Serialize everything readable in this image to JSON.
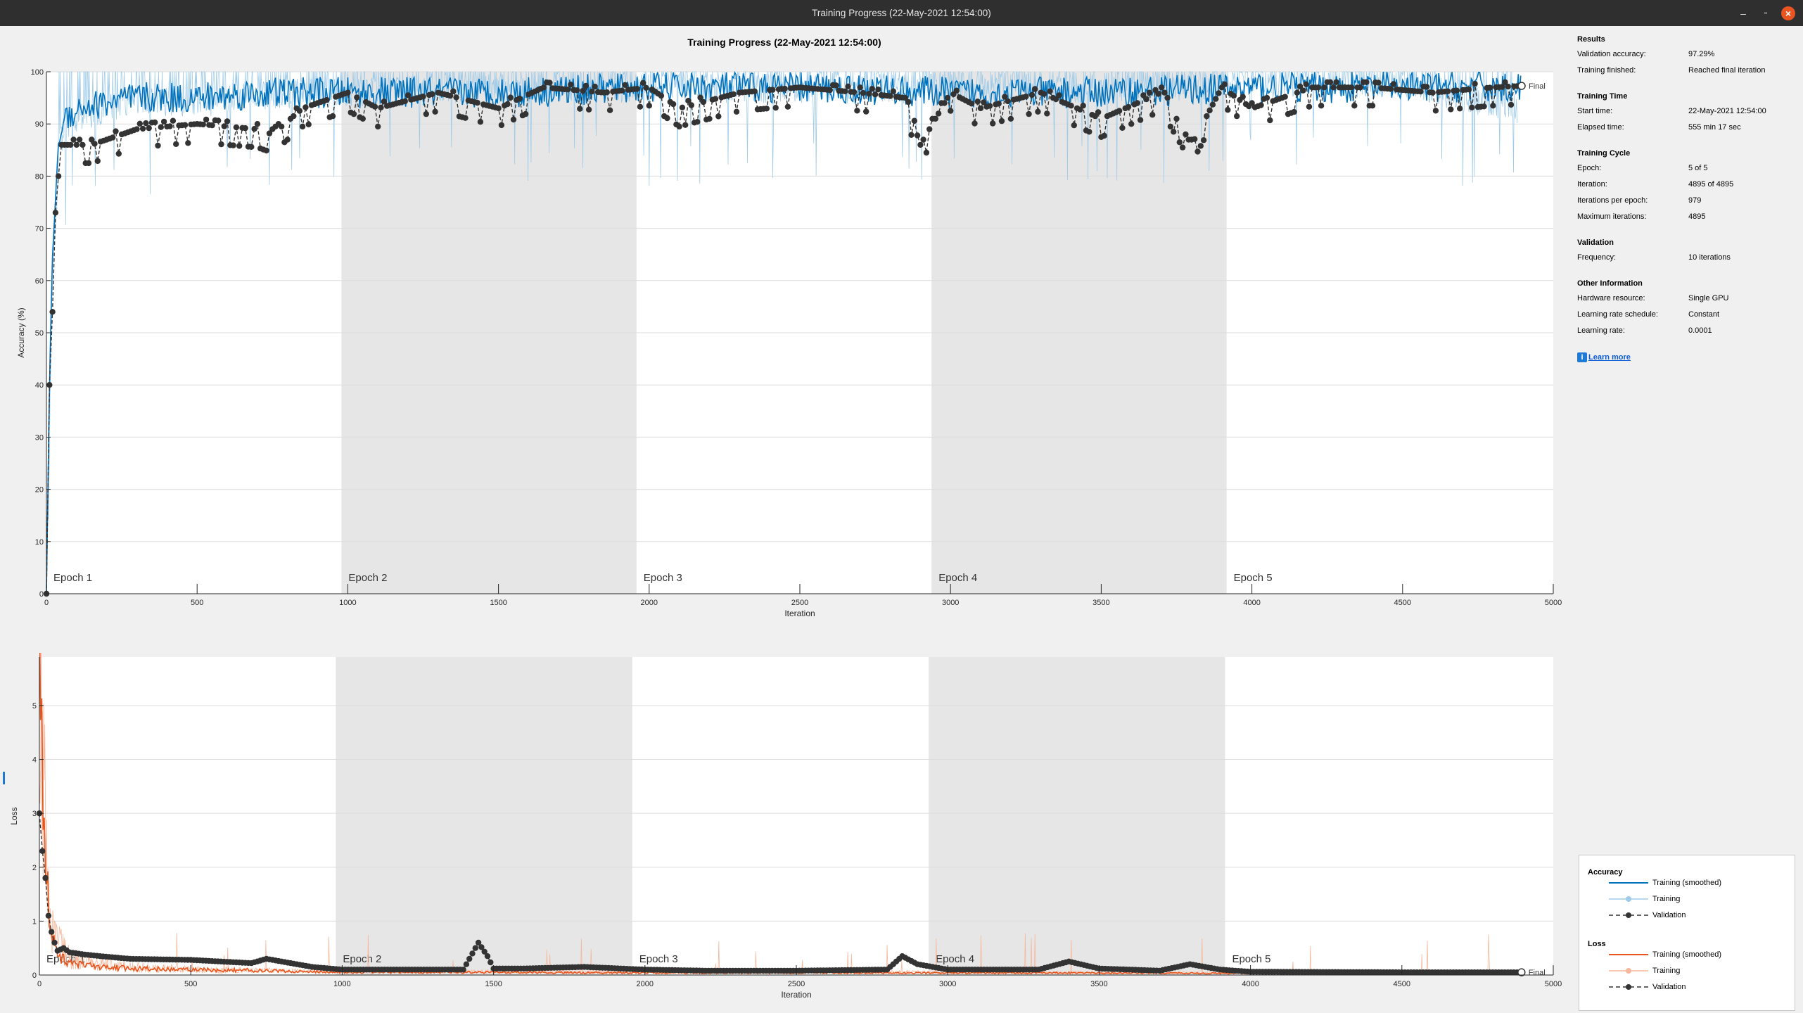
{
  "window": {
    "title": "Training Progress (22-May-2021 12:54:00)"
  },
  "plot_title": "Training Progress (22-May-2021 12:54:00)",
  "info": {
    "sections": [
      {
        "title": "Results",
        "rows": [
          {
            "label": "Validation accuracy:",
            "value": "97.29%"
          },
          {
            "label": "Training finished:",
            "value": "Reached final iteration"
          }
        ]
      },
      {
        "title": "Training Time",
        "rows": [
          {
            "label": "Start time:",
            "value": "22-May-2021 12:54:00"
          },
          {
            "label": "Elapsed time:",
            "value": "555 min 17 sec"
          }
        ]
      },
      {
        "title": "Training Cycle",
        "rows": [
          {
            "label": "Epoch:",
            "value": "5 of 5"
          },
          {
            "label": "Iteration:",
            "value": "4895 of 4895"
          },
          {
            "label": "Iterations per epoch:",
            "value": "979"
          },
          {
            "label": "Maximum iterations:",
            "value": "4895"
          }
        ]
      },
      {
        "title": "Validation",
        "rows": [
          {
            "label": "Frequency:",
            "value": "10 iterations"
          }
        ]
      },
      {
        "title": "Other Information",
        "rows": [
          {
            "label": "Hardware resource:",
            "value": "Single GPU"
          },
          {
            "label": "Learning rate schedule:",
            "value": "Constant"
          },
          {
            "label": "Learning rate:",
            "value": "0.0001"
          }
        ]
      }
    ],
    "learn_more": "Learn more"
  },
  "legend": {
    "accuracy_title": "Accuracy",
    "loss_title": "Loss",
    "entries": [
      "Training (smoothed)",
      "Training",
      "Validation"
    ]
  },
  "colors": {
    "acc_smoothed": "#0072bd",
    "acc_training": "#9fcbe8",
    "loss_smoothed": "#e8541c",
    "loss_training": "#f6b89c",
    "validation": "#333333",
    "epoch_shade": "#e6e6e6"
  },
  "chart_data": [
    {
      "type": "line",
      "xlabel": "Iteration",
      "ylabel": "Accuracy (%)",
      "xlim": [
        0,
        5000
      ],
      "ylim": [
        0,
        100
      ],
      "xticks": [
        0,
        500,
        1000,
        1500,
        2000,
        2500,
        3000,
        3500,
        4000,
        4500,
        5000
      ],
      "yticks": [
        0,
        10,
        20,
        30,
        40,
        50,
        60,
        70,
        80,
        90,
        100
      ],
      "epochs": [
        {
          "label": "Epoch 1",
          "start": 0,
          "end": 979
        },
        {
          "label": "Epoch 2",
          "start": 979,
          "end": 1958
        },
        {
          "label": "Epoch 3",
          "start": 1958,
          "end": 2937
        },
        {
          "label": "Epoch 4",
          "start": 2937,
          "end": 3916
        },
        {
          "label": "Epoch 5",
          "start": 3916,
          "end": 4895
        }
      ],
      "final_label": "Final",
      "series": [
        {
          "name": "Training (smoothed)",
          "x": [
            0,
            10,
            20,
            40,
            60,
            100,
            200,
            300,
            500,
            750,
            1000,
            1500,
            2000,
            2500,
            3000,
            3500,
            4000,
            4500,
            4895
          ],
          "y": [
            0,
            40,
            65,
            86,
            91,
            93,
            94,
            95,
            95,
            96,
            96,
            96,
            97,
            97,
            96,
            96,
            97,
            97,
            97
          ]
        },
        {
          "name": "Training",
          "x": [
            0,
            10,
            20,
            40,
            60,
            100,
            200,
            300,
            500,
            750,
            1000,
            1500,
            2000,
            2500,
            3000,
            3500,
            4000,
            4500,
            4880
          ],
          "y": [
            0,
            30,
            60,
            84,
            88,
            90,
            92,
            94,
            93,
            95,
            95,
            96,
            96,
            96,
            96,
            96,
            97,
            97,
            92
          ]
        },
        {
          "name": "Validation",
          "x": [
            0,
            10,
            20,
            30,
            40,
            50,
            80,
            150,
            300,
            500,
            700,
            750,
            850,
            1000,
            1100,
            1300,
            1500,
            1650,
            1850,
            2000,
            2100,
            2300,
            2500,
            2700,
            2850,
            2900,
            3000,
            3100,
            3300,
            3500,
            3700,
            3800,
            3900,
            4000,
            4200,
            4400,
            4600,
            4800,
            4895
          ],
          "y": [
            0,
            40,
            54,
            73,
            80,
            86,
            86,
            86,
            89,
            90,
            89,
            88,
            93,
            96,
            93,
            96,
            93,
            97,
            96,
            97,
            93,
            96,
            97,
            96,
            95,
            86,
            96,
            93,
            96,
            91,
            96,
            86,
            97,
            93,
            97,
            97,
            96,
            97,
            97.29
          ]
        }
      ]
    },
    {
      "type": "line",
      "xlabel": "Iteration",
      "ylabel": "Loss",
      "xlim": [
        0,
        5000
      ],
      "ylim": [
        0,
        5.9
      ],
      "xticks": [
        0,
        500,
        1000,
        1500,
        2000,
        2500,
        3000,
        3500,
        4000,
        4500,
        5000
      ],
      "yticks": [
        0,
        1,
        2,
        3,
        4,
        5
      ],
      "epochs": [
        {
          "label": "Epoch 1",
          "start": 0,
          "end": 979
        },
        {
          "label": "Epoch 2",
          "start": 979,
          "end": 1958
        },
        {
          "label": "Epoch 3",
          "start": 1958,
          "end": 2937
        },
        {
          "label": "Epoch 4",
          "start": 2937,
          "end": 3916
        },
        {
          "label": "Epoch 5",
          "start": 3916,
          "end": 4895
        }
      ],
      "final_label": "Final",
      "series": [
        {
          "name": "Training (smoothed)",
          "x": [
            0,
            5,
            20,
            40,
            60,
            100,
            200,
            300,
            500,
            750,
            1000,
            1500,
            2000,
            2500,
            3000,
            3500,
            4000,
            4500,
            4895
          ],
          "y": [
            5.8,
            4.2,
            2.2,
            0.8,
            0.4,
            0.2,
            0.15,
            0.12,
            0.1,
            0.08,
            0.05,
            0.05,
            0.04,
            0.04,
            0.04,
            0.04,
            0.03,
            0.03,
            0.03
          ]
        },
        {
          "name": "Training",
          "x": [
            0,
            5,
            20,
            40,
            60,
            100,
            200,
            300,
            500,
            750,
            1000,
            1500,
            2000,
            2500,
            3000,
            3500,
            4000,
            4500,
            4895
          ],
          "y": [
            5.8,
            4.5,
            2.5,
            1.0,
            0.6,
            0.3,
            0.2,
            0.15,
            0.1,
            0.08,
            0.06,
            0.06,
            0.05,
            0.05,
            0.05,
            0.04,
            0.04,
            0.03,
            0.03
          ]
        },
        {
          "name": "Validation",
          "x": [
            0,
            10,
            20,
            30,
            40,
            50,
            60,
            80,
            100,
            150,
            200,
            300,
            500,
            700,
            750,
            900,
            1000,
            1400,
            1450,
            1480,
            1500,
            1600,
            1800,
            2000,
            2200,
            2500,
            2800,
            2850,
            2900,
            3000,
            3300,
            3400,
            3500,
            3700,
            3800,
            3900,
            4000,
            4500,
            4895
          ],
          "y": [
            3.0,
            2.3,
            1.8,
            1.1,
            0.8,
            0.6,
            0.45,
            0.5,
            0.42,
            0.38,
            0.35,
            0.3,
            0.28,
            0.22,
            0.3,
            0.15,
            0.1,
            0.1,
            0.6,
            0.35,
            0.12,
            0.12,
            0.15,
            0.1,
            0.08,
            0.08,
            0.1,
            0.35,
            0.2,
            0.1,
            0.1,
            0.25,
            0.12,
            0.08,
            0.2,
            0.1,
            0.06,
            0.05,
            0.05
          ]
        }
      ]
    }
  ]
}
